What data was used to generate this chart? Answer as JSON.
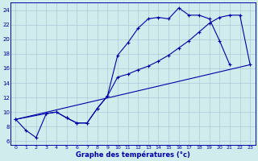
{
  "background_color": "#d0ecec",
  "grid_color": "#b0c8d8",
  "line_color": "#0000aa",
  "xlabel": "Graphe des températures (°c)",
  "xlim": [
    -0.5,
    23.5
  ],
  "ylim": [
    5.5,
    25.0
  ],
  "yticks": [
    6,
    8,
    10,
    12,
    14,
    16,
    18,
    20,
    22,
    24
  ],
  "xticks": [
    0,
    1,
    2,
    3,
    4,
    5,
    6,
    7,
    8,
    9,
    10,
    11,
    12,
    13,
    14,
    15,
    16,
    17,
    18,
    19,
    20,
    21,
    22,
    23
  ],
  "line1_x": [
    0,
    1,
    2,
    3,
    4,
    5,
    6,
    7,
    8,
    9,
    10,
    11,
    12,
    13,
    14,
    15,
    16,
    17,
    18,
    19,
    20,
    21
  ],
  "line1_y": [
    9.0,
    7.5,
    6.5,
    9.8,
    10.0,
    9.2,
    8.5,
    8.5,
    10.5,
    12.2,
    17.8,
    19.5,
    21.5,
    22.8,
    23.0,
    22.8,
    24.3,
    23.3,
    23.3,
    22.8,
    19.8,
    16.5
  ],
  "line2_x": [
    0,
    3,
    4,
    5,
    6,
    7,
    8,
    9,
    10,
    11,
    12,
    13,
    14,
    15,
    16,
    17,
    18,
    19,
    20,
    21,
    22,
    23
  ],
  "line2_y": [
    9.0,
    9.8,
    10.0,
    9.2,
    8.5,
    8.5,
    10.5,
    12.2,
    14.8,
    15.2,
    15.8,
    16.3,
    17.0,
    17.8,
    18.8,
    19.8,
    21.0,
    22.2,
    23.0,
    23.3,
    23.3,
    16.5
  ],
  "line3_x": [
    0,
    23
  ],
  "line3_y": [
    9.0,
    16.5
  ],
  "marker_x1": [
    0,
    1,
    2,
    3,
    4,
    5,
    6,
    7,
    8,
    9,
    10,
    11,
    12,
    13,
    14,
    15,
    16,
    17,
    18,
    19,
    20,
    21
  ],
  "marker_x2": [
    0,
    3,
    4,
    5,
    6,
    7,
    8,
    9,
    10,
    11,
    12,
    13,
    14,
    15,
    16,
    17,
    18,
    19,
    20,
    21,
    22,
    23
  ]
}
